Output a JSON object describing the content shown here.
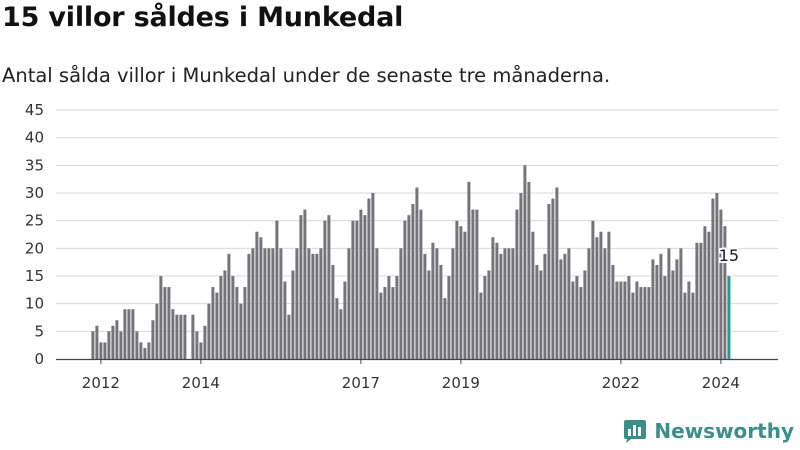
{
  "header": {
    "title": "15 villor såldes i Munkedal",
    "subtitle": "Antal sålda villor i Munkedal under de senaste tre månaderna."
  },
  "brand": {
    "name": "Newsworthy",
    "color": "#3a8f8a"
  },
  "colors": {
    "bar": "#76747a",
    "highlight": "#1f9c93",
    "grid": "#d9d9d9",
    "axis": "#444444"
  },
  "chart_data": {
    "type": "bar",
    "title": "15 villor såldes i Munkedal",
    "subtitle": "Antal sålda villor i Munkedal under de senaste tre månaderna.",
    "xlabel": "",
    "ylabel": "",
    "ylim": [
      0,
      45
    ],
    "yticks": [
      0,
      5,
      10,
      15,
      20,
      25,
      30,
      35,
      40,
      45
    ],
    "grid": true,
    "x_tick_labels": [
      "2012",
      "2014",
      "2017",
      "2019",
      "2022",
      "2024"
    ],
    "x_tick_index": [
      2,
      27,
      67,
      92,
      132,
      157
    ],
    "highlight_label": "15",
    "values": [
      5,
      6,
      3,
      3,
      5,
      6,
      7,
      5,
      9,
      9,
      9,
      5,
      3,
      2,
      3,
      7,
      10,
      15,
      13,
      13,
      9,
      8,
      8,
      8,
      0,
      8,
      5,
      3,
      6,
      10,
      13,
      12,
      15,
      16,
      19,
      15,
      13,
      10,
      13,
      19,
      20,
      23,
      22,
      20,
      20,
      20,
      25,
      20,
      14,
      8,
      16,
      20,
      26,
      27,
      20,
      19,
      19,
      20,
      25,
      26,
      17,
      11,
      9,
      14,
      20,
      25,
      25,
      27,
      26,
      29,
      30,
      20,
      12,
      13,
      15,
      13,
      15,
      20,
      25,
      26,
      28,
      31,
      27,
      19,
      16,
      21,
      20,
      17,
      11,
      15,
      20,
      25,
      24,
      23,
      32,
      27,
      27,
      12,
      15,
      16,
      22,
      21,
      19,
      20,
      20,
      20,
      27,
      30,
      35,
      32,
      23,
      17,
      16,
      19,
      28,
      29,
      31,
      18,
      19,
      20,
      14,
      15,
      13,
      16,
      20,
      25,
      22,
      23,
      20,
      23,
      17,
      14,
      14,
      14,
      15,
      12,
      14,
      13,
      13,
      13,
      18,
      17,
      19,
      15,
      20,
      16,
      18,
      20,
      12,
      14,
      12,
      21,
      21,
      24,
      23,
      29,
      30,
      27,
      24,
      15
    ]
  }
}
